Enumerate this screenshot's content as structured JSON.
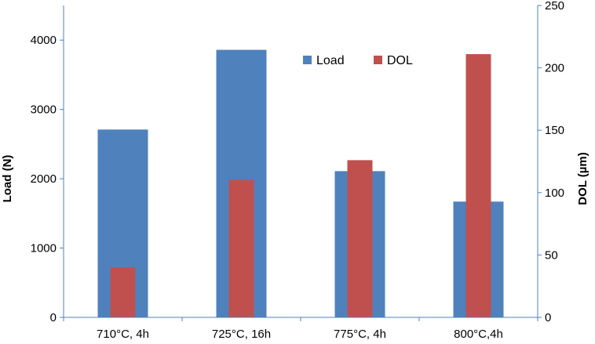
{
  "chart_data": {
    "type": "bar",
    "categories": [
      "710°C, 4h",
      "725°C, 16h",
      "775°C, 4h",
      "800°C,4h"
    ],
    "series": [
      {
        "name": "Load",
        "axis": "left",
        "color": "#4F81BD",
        "values": [
          2710,
          3860,
          2110,
          1670
        ]
      },
      {
        "name": "DOL",
        "axis": "right",
        "color": "#C0504D",
        "values": [
          40,
          110,
          126,
          211
        ]
      }
    ],
    "ylabel": "Load (N)",
    "ylabel_right": "DOL (µm)",
    "ylim": [
      0,
      4500
    ],
    "ylim_right": [
      0,
      250
    ],
    "yticks": [
      0,
      1000,
      2000,
      3000,
      4000
    ],
    "yticks_right": [
      0,
      50,
      100,
      150,
      200,
      250
    ],
    "grid": false,
    "legend": "top-right"
  }
}
